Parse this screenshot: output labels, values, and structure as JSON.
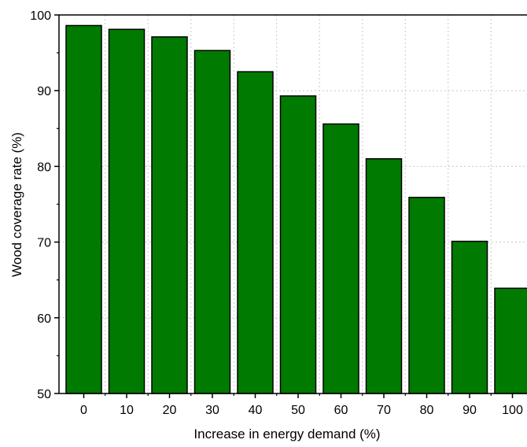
{
  "chart_data": {
    "type": "bar",
    "title": "",
    "xlabel": "Increase in energy demand (%)",
    "ylabel": "Wood coverage rate (%)",
    "categories": [
      "0",
      "10",
      "20",
      "30",
      "40",
      "50",
      "60",
      "70",
      "80",
      "90",
      "100"
    ],
    "values": [
      98.6,
      98.1,
      97.1,
      95.3,
      92.5,
      89.3,
      85.6,
      81.0,
      75.9,
      70.1,
      63.9
    ],
    "ylim": [
      50,
      100
    ],
    "yticks": [
      50,
      60,
      70,
      80,
      90,
      100
    ],
    "grid": true,
    "legend": "none",
    "colors": {
      "bar_fill": "#007a00",
      "bar_stroke": "#000000",
      "grid": "#c8c8c8"
    }
  }
}
